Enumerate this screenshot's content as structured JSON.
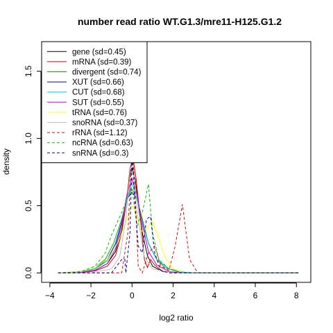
{
  "chart_data": {
    "type": "line",
    "title": "number read ratio WT.G1.3/mre11-H125.G1.2",
    "xlabel": "log2 ratio",
    "ylabel": "density",
    "xlim": [
      -4.4,
      8.7
    ],
    "ylim": [
      -0.07,
      1.72
    ],
    "x_ticks": [
      -4,
      -2,
      0,
      2,
      4,
      6,
      8
    ],
    "y_ticks": [
      0.0,
      0.5,
      1.0,
      1.5
    ],
    "x_tick_labels": [
      "−4",
      "−2",
      "0",
      "2",
      "4",
      "6",
      "8"
    ],
    "y_tick_labels": [
      "0.0",
      "0.5",
      "1.0",
      "1.5"
    ],
    "grid": false,
    "legend_position": "top-left",
    "series": [
      {
        "name": "gene (sd=0.45)",
        "color": "#000000",
        "dash": "solid",
        "points": [
          [
            -3.6,
            0
          ],
          [
            -2.5,
            0.003
          ],
          [
            -1.8,
            0.02
          ],
          [
            -1.2,
            0.07
          ],
          [
            -0.8,
            0.16
          ],
          [
            -0.5,
            0.32
          ],
          [
            -0.25,
            0.55
          ],
          [
            -0.1,
            0.72
          ],
          [
            0,
            0.78
          ],
          [
            0.15,
            0.7
          ],
          [
            0.3,
            0.52
          ],
          [
            0.5,
            0.3
          ],
          [
            0.75,
            0.13
          ],
          [
            1.0,
            0.05
          ],
          [
            1.5,
            0.01
          ],
          [
            2.5,
            0.001
          ],
          [
            8.1,
            0
          ]
        ]
      },
      {
        "name": "mRNA (sd=0.39)",
        "color": "#cc0000",
        "dash": "solid",
        "points": [
          [
            -3.6,
            0
          ],
          [
            -2.5,
            0.002
          ],
          [
            -1.8,
            0.015
          ],
          [
            -1.2,
            0.05
          ],
          [
            -0.8,
            0.13
          ],
          [
            -0.5,
            0.3
          ],
          [
            -0.25,
            0.55
          ],
          [
            -0.1,
            0.78
          ],
          [
            0.05,
            0.86
          ],
          [
            0.2,
            0.7
          ],
          [
            0.35,
            0.48
          ],
          [
            0.5,
            0.27
          ],
          [
            0.6,
            0.1
          ],
          [
            0.75,
            0.04
          ],
          [
            0.9,
            0.1
          ],
          [
            1.1,
            0.06
          ],
          [
            1.5,
            0.01
          ],
          [
            2.5,
            0
          ],
          [
            8.1,
            0
          ]
        ]
      },
      {
        "name": "divergent (sd=0.74)",
        "color": "#00aa00",
        "dash": "solid",
        "points": [
          [
            -3.6,
            0
          ],
          [
            -2.5,
            0.01
          ],
          [
            -1.8,
            0.04
          ],
          [
            -1.3,
            0.1
          ],
          [
            -0.9,
            0.22
          ],
          [
            -0.5,
            0.4
          ],
          [
            -0.2,
            0.58
          ],
          [
            0,
            0.62
          ],
          [
            0.2,
            0.58
          ],
          [
            0.5,
            0.4
          ],
          [
            0.8,
            0.22
          ],
          [
            1.2,
            0.1
          ],
          [
            1.6,
            0.04
          ],
          [
            2.2,
            0.01
          ],
          [
            3,
            0
          ],
          [
            8.1,
            0
          ]
        ]
      },
      {
        "name": "XUT (sd=0.66)",
        "color": "#0000cc",
        "dash": "solid",
        "points": [
          [
            -3.6,
            0
          ],
          [
            -2.5,
            0.008
          ],
          [
            -1.8,
            0.03
          ],
          [
            -1.2,
            0.1
          ],
          [
            -0.8,
            0.22
          ],
          [
            -0.5,
            0.38
          ],
          [
            -0.25,
            0.55
          ],
          [
            0,
            0.6
          ],
          [
            0.25,
            0.55
          ],
          [
            0.5,
            0.38
          ],
          [
            0.8,
            0.22
          ],
          [
            1.2,
            0.1
          ],
          [
            1.8,
            0.03
          ],
          [
            2.5,
            0.005
          ],
          [
            3.2,
            0
          ],
          [
            8.1,
            0
          ]
        ]
      },
      {
        "name": "CUT (sd=0.68)",
        "color": "#00cccc",
        "dash": "solid",
        "points": [
          [
            -3.6,
            0
          ],
          [
            -2.5,
            0.008
          ],
          [
            -1.8,
            0.03
          ],
          [
            -1.2,
            0.09
          ],
          [
            -0.8,
            0.2
          ],
          [
            -0.5,
            0.36
          ],
          [
            -0.25,
            0.55
          ],
          [
            0,
            0.67
          ],
          [
            0.25,
            0.55
          ],
          [
            0.5,
            0.38
          ],
          [
            0.8,
            0.22
          ],
          [
            1.2,
            0.1
          ],
          [
            1.8,
            0.03
          ],
          [
            2.5,
            0.005
          ],
          [
            3.2,
            0
          ],
          [
            8.1,
            0
          ]
        ]
      },
      {
        "name": "SUT (sd=0.55)",
        "color": "#cc00cc",
        "dash": "solid",
        "points": [
          [
            -3.6,
            0
          ],
          [
            -2.5,
            0.004
          ],
          [
            -1.8,
            0.02
          ],
          [
            -1.2,
            0.07
          ],
          [
            -0.8,
            0.18
          ],
          [
            -0.5,
            0.36
          ],
          [
            -0.25,
            0.58
          ],
          [
            0,
            0.7
          ],
          [
            0.25,
            0.58
          ],
          [
            0.5,
            0.36
          ],
          [
            0.8,
            0.16
          ],
          [
            1.2,
            0.06
          ],
          [
            1.8,
            0.01
          ],
          [
            2.5,
            0
          ],
          [
            8.1,
            0
          ]
        ]
      },
      {
        "name": "tRNA (sd=0.76)",
        "color": "#ffff00",
        "dash": "solid",
        "points": [
          [
            -3.6,
            0
          ],
          [
            -2.5,
            0.01
          ],
          [
            -1.8,
            0.04
          ],
          [
            -1.2,
            0.1
          ],
          [
            -0.7,
            0.22
          ],
          [
            -0.3,
            0.38
          ],
          [
            0,
            0.5
          ],
          [
            0.2,
            0.44
          ],
          [
            0.4,
            0.32
          ],
          [
            0.6,
            0.3
          ],
          [
            0.8,
            0.35
          ],
          [
            1.0,
            0.38
          ],
          [
            1.3,
            0.26
          ],
          [
            1.6,
            0.12
          ],
          [
            2.0,
            0.03
          ],
          [
            2.5,
            0
          ],
          [
            8.1,
            0
          ]
        ]
      },
      {
        "name": "snoRNA (sd=0.37)",
        "color": "#bbbbbb",
        "dash": "solid",
        "points": [
          [
            -3.6,
            0
          ],
          [
            -2.0,
            0
          ],
          [
            -1.0,
            0.03
          ],
          [
            -0.6,
            0.12
          ],
          [
            -0.3,
            0.4
          ],
          [
            -0.1,
            0.75
          ],
          [
            0,
            0.9
          ],
          [
            0.1,
            0.75
          ],
          [
            0.3,
            0.4
          ],
          [
            0.6,
            0.12
          ],
          [
            1.0,
            0.03
          ],
          [
            2.0,
            0
          ],
          [
            8.1,
            0
          ]
        ]
      },
      {
        "name": "rRNA (sd=1.12)",
        "color": "#dd0000",
        "dash": "dashed",
        "points": [
          [
            -3.6,
            0
          ],
          [
            -0.5,
            0
          ],
          [
            -0.2,
            0.3
          ],
          [
            0,
            0.95
          ],
          [
            0.15,
            0.6
          ],
          [
            0.3,
            0.05
          ],
          [
            0.5,
            0
          ],
          [
            0.8,
            0.15
          ],
          [
            1.1,
            0.2
          ],
          [
            1.4,
            0.05
          ],
          [
            1.8,
            0.02
          ],
          [
            2.1,
            0.2
          ],
          [
            2.45,
            0.51
          ],
          [
            2.8,
            0.1
          ],
          [
            3.2,
            0
          ],
          [
            8.1,
            0
          ]
        ]
      },
      {
        "name": "ncRNA (sd=0.63)",
        "color": "#00bb00",
        "dash": "dashed",
        "points": [
          [
            -3.6,
            0
          ],
          [
            -2.5,
            0.01
          ],
          [
            -1.8,
            0.05
          ],
          [
            -1.3,
            0.15
          ],
          [
            -1.0,
            0.28
          ],
          [
            -0.8,
            0.35
          ],
          [
            -0.5,
            0.45
          ],
          [
            -0.25,
            0.55
          ],
          [
            0,
            0.62
          ],
          [
            0.25,
            0.35
          ],
          [
            0.5,
            0.45
          ],
          [
            0.8,
            0.66
          ],
          [
            1.0,
            0.3
          ],
          [
            1.3,
            0.1
          ],
          [
            1.8,
            0.03
          ],
          [
            2.5,
            0
          ],
          [
            8.1,
            0
          ]
        ]
      },
      {
        "name": "snRNA (sd=0.3)",
        "color": "#000099",
        "dash": "dashed",
        "points": [
          [
            -3.6,
            0
          ],
          [
            -1.0,
            0
          ],
          [
            -0.5,
            0.1
          ],
          [
            -0.35,
            0.1
          ],
          [
            -0.3,
            0
          ],
          [
            -0.1,
            0.3
          ],
          [
            0,
            0.88
          ],
          [
            0.1,
            0.6
          ],
          [
            0.3,
            0.2
          ],
          [
            0.5,
            0.15
          ],
          [
            0.7,
            0.4
          ],
          [
            0.9,
            0.42
          ],
          [
            1.1,
            0.15
          ],
          [
            1.4,
            0.02
          ],
          [
            1.8,
            0
          ],
          [
            8.1,
            0
          ]
        ]
      }
    ]
  }
}
